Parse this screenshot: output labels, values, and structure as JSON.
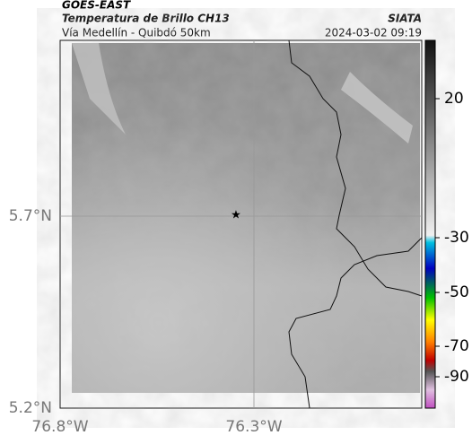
{
  "header": {
    "satellite": "GOES-EAST",
    "product": "Temperatura de Brillo CH13",
    "route": "Vía Medellín - Quibdó 50km",
    "source": "SIATA",
    "timestamp": "2024-03-02 09:19"
  },
  "map": {
    "lat_labels": [
      "5.7°N",
      "5.2°N"
    ],
    "lon_labels": [
      "76.8°W",
      "76.3°W"
    ],
    "marker": "★"
  },
  "colorbar": {
    "ticks": [
      20,
      -30,
      -50,
      -70,
      -90
    ]
  }
}
